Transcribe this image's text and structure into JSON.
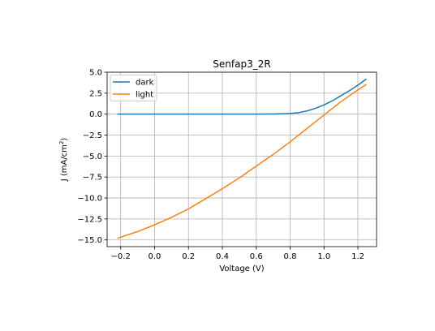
{
  "chart_data": {
    "type": "line",
    "title": "Senfap3_2R",
    "xlabel": "Voltage (V)",
    "ylabel_main": "J (mA/cm",
    "ylabel_sup": "2",
    "ylabel_end": ")",
    "xlim": [
      -0.28,
      1.31
    ],
    "ylim": [
      -15.8,
      5.0
    ],
    "xticks": [
      -0.2,
      0.0,
      0.2,
      0.4,
      0.6,
      0.8,
      1.0,
      1.2
    ],
    "xtick_labels": [
      "−0.2",
      "0.0",
      "0.2",
      "0.4",
      "0.6",
      "0.8",
      "1.0",
      "1.2"
    ],
    "yticks": [
      5.0,
      2.5,
      0.0,
      -2.5,
      -5.0,
      -7.5,
      -10.0,
      -12.5,
      -15.0
    ],
    "ytick_labels": [
      "5.0",
      "2.5",
      "0.0",
      "−2.5",
      "−5.0",
      "−7.5",
      "−10.0",
      "−12.5",
      "−15.0"
    ],
    "grid": true,
    "legend_position": "top-left",
    "series": [
      {
        "name": "dark",
        "color": "#1f77b4",
        "x": [
          -0.22,
          0.0,
          0.2,
          0.4,
          0.6,
          0.7,
          0.75,
          0.8,
          0.85,
          0.9,
          0.95,
          1.0,
          1.05,
          1.1,
          1.15,
          1.2,
          1.25
        ],
        "y": [
          0.0,
          0.0,
          0.0,
          0.0,
          0.0,
          0.02,
          0.04,
          0.08,
          0.18,
          0.38,
          0.7,
          1.1,
          1.6,
          2.2,
          2.8,
          3.45,
          4.2
        ]
      },
      {
        "name": "light",
        "color": "#ff7f0e",
        "x": [
          -0.22,
          -0.1,
          0.0,
          0.1,
          0.2,
          0.3,
          0.4,
          0.5,
          0.6,
          0.7,
          0.8,
          0.9,
          1.0,
          1.1,
          1.2,
          1.25
        ],
        "y": [
          -14.8,
          -14.0,
          -13.2,
          -12.3,
          -11.3,
          -10.1,
          -8.9,
          -7.6,
          -6.2,
          -4.8,
          -3.3,
          -1.7,
          -0.1,
          1.5,
          2.9,
          3.55
        ]
      }
    ]
  }
}
